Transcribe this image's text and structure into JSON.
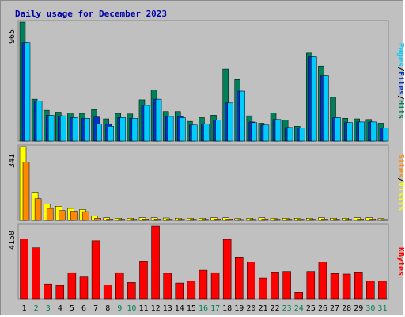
{
  "title": "Daily usage for December 2023",
  "colors": {
    "hits": "#00805a",
    "files": "#0033cc",
    "pages": "#00ccff",
    "visits": "#ffff00",
    "sites": "#ff8800",
    "kbytes": "#ff0000",
    "weekend_day": "#00805a",
    "weekday": "#000000",
    "separator": "#000000"
  },
  "legend": {
    "top": [
      "Pages",
      "/",
      "Files",
      "/",
      "Hits"
    ],
    "middle": [
      "Sites",
      "/",
      "Visits"
    ],
    "bottom": [
      "KBytes"
    ]
  },
  "chart_data": [
    {
      "type": "bar",
      "panel": "hits-files-pages",
      "ymax_label": "965",
      "ylim": [
        0,
        965
      ],
      "categories": [
        "1",
        "2",
        "3",
        "4",
        "5",
        "6",
        "7",
        "8",
        "9",
        "10",
        "11",
        "12",
        "13",
        "14",
        "15",
        "16",
        "17",
        "18",
        "19",
        "20",
        "21",
        "22",
        "23",
        "24",
        "25",
        "26",
        "27",
        "28",
        "29",
        "30",
        "31"
      ],
      "weekend_days": [
        2,
        3,
        9,
        10,
        16,
        17,
        23,
        24,
        30,
        31
      ],
      "series": [
        {
          "name": "Hits",
          "values": [
            965,
            340,
            250,
            235,
            230,
            225,
            255,
            180,
            225,
            220,
            335,
            415,
            240,
            240,
            160,
            190,
            210,
            585,
            500,
            205,
            145,
            230,
            170,
            120,
            715,
            610,
            355,
            185,
            180,
            175,
            145
          ]
        },
        {
          "name": "Files",
          "values": [
            800,
            325,
            210,
            205,
            190,
            185,
            195,
            140,
            190,
            185,
            290,
            340,
            200,
            200,
            130,
            140,
            170,
            310,
            405,
            155,
            130,
            175,
            110,
            105,
            685,
            530,
            190,
            150,
            155,
            155,
            105
          ]
        },
        {
          "name": "Pages",
          "values": [
            800,
            325,
            210,
            205,
            190,
            185,
            140,
            120,
            190,
            185,
            290,
            340,
            200,
            190,
            130,
            140,
            170,
            310,
            405,
            150,
            130,
            175,
            110,
            105,
            685,
            530,
            190,
            150,
            155,
            155,
            105
          ]
        }
      ]
    },
    {
      "type": "bar",
      "panel": "visits-sites",
      "ymax_label": "341",
      "ylim": [
        0,
        341
      ],
      "categories": [
        "1",
        "2",
        "3",
        "4",
        "5",
        "6",
        "7",
        "8",
        "9",
        "10",
        "11",
        "12",
        "13",
        "14",
        "15",
        "16",
        "17",
        "18",
        "19",
        "20",
        "21",
        "22",
        "23",
        "24",
        "25",
        "26",
        "27",
        "28",
        "29",
        "30",
        "31"
      ],
      "series": [
        {
          "name": "Visits",
          "values": [
            341,
            130,
            75,
            65,
            55,
            50,
            20,
            12,
            10,
            10,
            12,
            12,
            11,
            10,
            10,
            10,
            12,
            12,
            8,
            10,
            12,
            10,
            10,
            10,
            10,
            12,
            10,
            10,
            12,
            12,
            8
          ]
        },
        {
          "name": "Sites",
          "values": [
            270,
            100,
            55,
            45,
            42,
            40,
            10,
            6,
            5,
            5,
            6,
            6,
            5,
            5,
            5,
            5,
            6,
            6,
            4,
            5,
            6,
            5,
            5,
            5,
            5,
            6,
            5,
            5,
            6,
            6,
            4
          ]
        }
      ]
    },
    {
      "type": "bar",
      "panel": "kbytes",
      "ymax_label": "4150",
      "ylim": [
        0,
        4150
      ],
      "categories": [
        "1",
        "2",
        "3",
        "4",
        "5",
        "6",
        "7",
        "8",
        "9",
        "10",
        "11",
        "12",
        "13",
        "14",
        "15",
        "16",
        "17",
        "18",
        "19",
        "20",
        "21",
        "22",
        "23",
        "24",
        "25",
        "26",
        "27",
        "28",
        "29",
        "30",
        "31"
      ],
      "series": [
        {
          "name": "KBytes",
          "values": [
            3400,
            2900,
            850,
            760,
            1480,
            1280,
            3300,
            780,
            1480,
            930,
            2150,
            4150,
            1450,
            900,
            1000,
            1620,
            1480,
            3380,
            2380,
            2100,
            1170,
            1520,
            1550,
            350,
            1550,
            2100,
            1430,
            1400,
            1520,
            1000,
            1000
          ]
        }
      ]
    }
  ]
}
